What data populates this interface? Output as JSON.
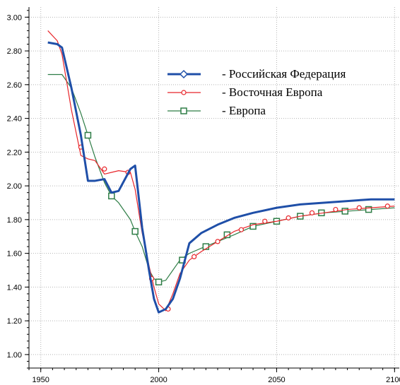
{
  "chart_data": {
    "type": "line",
    "xlim": [
      1945,
      2102
    ],
    "ylim": [
      0.92,
      3.06
    ],
    "xticks": [
      1950,
      2000,
      2050,
      2100
    ],
    "xtick_labels": [
      "1950",
      "2000",
      "2050",
      "2100"
    ],
    "yticks": [
      1.0,
      1.2,
      1.4,
      1.6,
      1.8,
      2.0,
      2.2,
      2.4,
      2.6,
      2.8,
      3.0
    ],
    "ytick_labels": [
      "1.00",
      "1.20",
      "1.40",
      "1.60",
      "1.80",
      "2.00",
      "2.20",
      "2.40",
      "2.60",
      "2.80",
      "3.00"
    ],
    "grid": true,
    "legend_position": "upper-right",
    "series": [
      {
        "name": "- Российская Федерация",
        "color": "#1f4fa8",
        "marker": "diamond",
        "x": [
          1953,
          1957,
          1959,
          1963,
          1967,
          1970,
          1973,
          1977,
          1980,
          1983,
          1988,
          1990,
          1993,
          1996,
          1998,
          2000,
          2003,
          2006,
          2009,
          2013,
          2018,
          2025,
          2032,
          2040,
          2050,
          2060,
          2070,
          2080,
          2090,
          2100
        ],
        "y": [
          2.85,
          2.84,
          2.82,
          2.58,
          2.3,
          2.03,
          2.03,
          2.04,
          1.96,
          1.97,
          2.1,
          2.12,
          1.75,
          1.49,
          1.33,
          1.25,
          1.27,
          1.33,
          1.45,
          1.66,
          1.72,
          1.77,
          1.81,
          1.84,
          1.87,
          1.89,
          1.9,
          1.91,
          1.92,
          1.92
        ],
        "marker_x": [],
        "marker_y": []
      },
      {
        "name": "- Восточная Европа",
        "color": "#e8252a",
        "marker": "circle",
        "x": [
          1953,
          1957,
          1959,
          1963,
          1967,
          1970,
          1973,
          1977,
          1980,
          1983,
          1988,
          1990,
          1993,
          1996,
          1998,
          2000,
          2003,
          2006,
          2009,
          2013,
          2018,
          2025,
          2032,
          2040,
          2050,
          2060,
          2070,
          2080,
          2090,
          2100
        ],
        "y": [
          2.92,
          2.86,
          2.78,
          2.45,
          2.18,
          2.16,
          2.15,
          2.07,
          2.08,
          2.09,
          2.08,
          1.98,
          1.72,
          1.52,
          1.4,
          1.3,
          1.26,
          1.36,
          1.48,
          1.56,
          1.61,
          1.67,
          1.73,
          1.77,
          1.79,
          1.82,
          1.84,
          1.86,
          1.87,
          1.88
        ],
        "marker_x": [
          1967,
          1977,
          1987,
          1997,
          2004,
          2015,
          2025,
          2035,
          2045,
          2055,
          2065,
          2075,
          2085,
          2097
        ],
        "marker_y": [
          2.23,
          2.1,
          2.08,
          1.45,
          1.27,
          1.58,
          1.67,
          1.74,
          1.79,
          1.81,
          1.84,
          1.86,
          1.87,
          1.88
        ]
      },
      {
        "name": "- Европа",
        "color": "#2e7d46",
        "marker": "square",
        "x": [
          1953,
          1957,
          1959,
          1963,
          1967,
          1970,
          1973,
          1977,
          1980,
          1983,
          1988,
          1990,
          1993,
          1996,
          1998,
          2000,
          2003,
          2006,
          2009,
          2013,
          2018,
          2025,
          2032,
          2040,
          2050,
          2060,
          2070,
          2080,
          2090,
          2100
        ],
        "y": [
          2.66,
          2.66,
          2.66,
          2.58,
          2.43,
          2.3,
          2.17,
          2.02,
          1.94,
          1.9,
          1.8,
          1.73,
          1.64,
          1.5,
          1.45,
          1.43,
          1.44,
          1.5,
          1.56,
          1.6,
          1.63,
          1.67,
          1.71,
          1.76,
          1.79,
          1.82,
          1.84,
          1.85,
          1.86,
          1.87
        ],
        "marker_x": [
          1970,
          1980,
          1990,
          2000,
          2010,
          2020,
          2029,
          2040,
          2050,
          2060,
          2069,
          2079,
          2089
        ],
        "marker_y": [
          2.3,
          1.94,
          1.73,
          1.43,
          1.56,
          1.64,
          1.71,
          1.76,
          1.79,
          1.82,
          1.84,
          1.85,
          1.86
        ]
      }
    ]
  }
}
